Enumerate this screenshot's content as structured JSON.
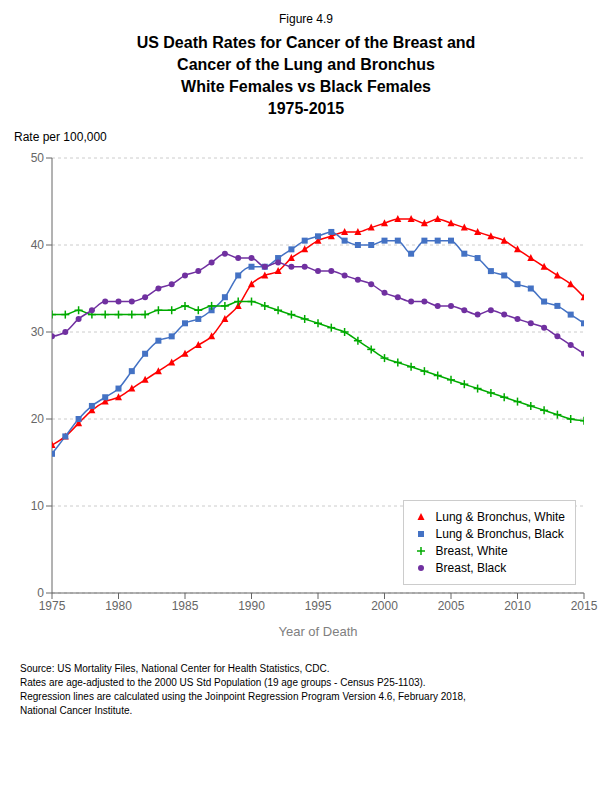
{
  "chart_data": {
    "type": "line",
    "title": "US Death Rates for Cancer of the Breast and\nCancer of the Lung and Bronchus\nWhite Females vs Black Females\n1975-2015",
    "annotations": [
      "Figure 4.9",
      "Source: US Mortality Files, National Center for Health Statistics, CDC.\nRates are age-adjusted to the 2000 US Std Population (19 age groups - Census P25-1103).\nRegression lines are calculated using the Joinpoint Regression Program Version 4.6, February 2018,\nNational Cancer Institute."
    ],
    "xlabel": "Year of Death",
    "ylabel": "Rate per 100,000",
    "xlim": [
      1975,
      2015
    ],
    "ylim": [
      0,
      50
    ],
    "xticks": [
      1975,
      1980,
      1985,
      1990,
      1995,
      2000,
      2005,
      2010,
      2015
    ],
    "yticks": [
      0,
      10,
      20,
      30,
      40,
      50
    ],
    "grid": "y",
    "legend": "lower right",
    "x": [
      1975,
      1976,
      1977,
      1978,
      1979,
      1980,
      1981,
      1982,
      1983,
      1984,
      1985,
      1986,
      1987,
      1988,
      1989,
      1990,
      1991,
      1992,
      1993,
      1994,
      1995,
      1996,
      1997,
      1998,
      1999,
      2000,
      2001,
      2002,
      2003,
      2004,
      2005,
      2006,
      2007,
      2008,
      2009,
      2010,
      2011,
      2012,
      2013,
      2014,
      2015
    ],
    "series": [
      {
        "name": "Lung & Bronchus, White",
        "color": "#FF0000",
        "marker": "triangle",
        "values": [
          17.0,
          18.0,
          19.5,
          21.0,
          22.0,
          22.5,
          23.5,
          24.5,
          25.5,
          26.5,
          27.5,
          28.5,
          29.5,
          31.5,
          33.0,
          35.5,
          36.5,
          37.0,
          38.5,
          39.5,
          40.5,
          41.0,
          41.5,
          41.5,
          42.0,
          42.5,
          43.0,
          43.0,
          42.5,
          43.0,
          42.5,
          42.0,
          41.5,
          41.0,
          40.5,
          39.5,
          38.5,
          37.5,
          36.5,
          35.5,
          34.0
        ]
      },
      {
        "name": "Lung & Bronchus, Black",
        "color": "#4472C4",
        "marker": "square",
        "values": [
          16.0,
          18.0,
          20.0,
          21.5,
          22.5,
          23.5,
          25.5,
          27.5,
          29.0,
          29.5,
          31.0,
          31.5,
          32.5,
          34.0,
          36.5,
          37.5,
          37.5,
          38.5,
          39.5,
          40.5,
          41.0,
          41.5,
          40.5,
          40.0,
          40.0,
          40.5,
          40.5,
          39.0,
          40.5,
          40.5,
          40.5,
          39.0,
          38.5,
          37.0,
          36.5,
          35.5,
          35.0,
          33.5,
          33.0,
          32.0,
          31.0
        ]
      },
      {
        "name": "Breast, White",
        "color": "#00AA00",
        "marker": "plus",
        "values": [
          32.0,
          32.0,
          32.5,
          32.0,
          32.0,
          32.0,
          32.0,
          32.0,
          32.5,
          32.5,
          33.0,
          32.5,
          33.0,
          33.0,
          33.5,
          33.5,
          33.0,
          32.5,
          32.0,
          31.5,
          31.0,
          30.5,
          30.0,
          29.0,
          28.0,
          27.0,
          26.5,
          26.0,
          25.5,
          25.0,
          24.5,
          24.0,
          23.5,
          23.0,
          22.5,
          22.0,
          21.5,
          21.0,
          20.5,
          20.0,
          19.8
        ]
      },
      {
        "name": "Breast, Black",
        "color": "#7030A0",
        "marker": "circle",
        "values": [
          29.5,
          30.0,
          31.5,
          32.5,
          33.5,
          33.5,
          33.5,
          34.0,
          35.0,
          35.5,
          36.5,
          37.0,
          38.0,
          39.0,
          38.5,
          38.5,
          37.5,
          38.0,
          37.5,
          37.5,
          37.0,
          37.0,
          36.5,
          36.0,
          35.5,
          34.5,
          34.0,
          33.5,
          33.5,
          33.0,
          33.0,
          32.5,
          32.0,
          32.5,
          32.0,
          31.5,
          31.0,
          30.5,
          29.5,
          28.5,
          27.5
        ]
      }
    ]
  }
}
